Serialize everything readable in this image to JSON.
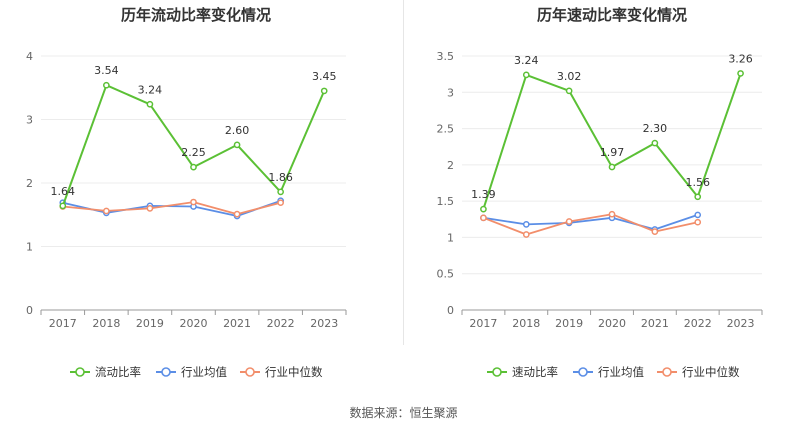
{
  "source": "数据来源：恒生聚源",
  "chart_data": [
    {
      "type": "line",
      "title": "历年流动比率变化情况",
      "categories": [
        "2017",
        "2018",
        "2019",
        "2020",
        "2021",
        "2022",
        "2023"
      ],
      "ylim": [
        0,
        4
      ],
      "yticks": [
        0,
        1,
        2,
        3,
        4
      ],
      "ytick_labels": [
        "0",
        "1",
        "2",
        "3",
        "4"
      ],
      "grid": true,
      "legend_position": "bottom",
      "series": [
        {
          "name": "流动比率",
          "color": "#5bc035",
          "values": [
            1.64,
            3.54,
            3.24,
            2.25,
            2.6,
            1.86,
            3.45
          ],
          "labels": [
            "1.64",
            "3.54",
            "3.24",
            "2.25",
            "2.60",
            "1.86",
            "3.45"
          ]
        },
        {
          "name": "行业均值",
          "color": "#5b8ee6",
          "values": [
            1.69,
            1.53,
            1.64,
            1.63,
            1.48,
            1.72,
            null
          ]
        },
        {
          "name": "行业中位数",
          "color": "#f28e6b",
          "values": [
            1.63,
            1.56,
            1.6,
            1.7,
            1.51,
            1.69,
            null
          ]
        }
      ]
    },
    {
      "type": "line",
      "title": "历年速动比率变化情况",
      "categories": [
        "2017",
        "2018",
        "2019",
        "2020",
        "2021",
        "2022",
        "2023"
      ],
      "ylim": [
        0,
        3.5
      ],
      "yticks": [
        0,
        0.5,
        1,
        1.5,
        2,
        2.5,
        3,
        3.5
      ],
      "ytick_labels": [
        "0",
        "0.5",
        "1",
        "1.5",
        "2",
        "2.5",
        "3",
        "3.5"
      ],
      "grid": true,
      "legend_position": "bottom",
      "series": [
        {
          "name": "速动比率",
          "color": "#5bc035",
          "values": [
            1.39,
            3.24,
            3.02,
            1.97,
            2.3,
            1.56,
            3.26
          ],
          "labels": [
            "1.39",
            "3.24",
            "3.02",
            "1.97",
            "2.30",
            "1.56",
            "3.26"
          ]
        },
        {
          "name": "行业均值",
          "color": "#5b8ee6",
          "values": [
            1.27,
            1.18,
            1.2,
            1.27,
            1.11,
            1.31,
            null
          ]
        },
        {
          "name": "行业中位数",
          "color": "#f28e6b",
          "values": [
            1.27,
            1.04,
            1.22,
            1.32,
            1.08,
            1.21,
            null
          ]
        }
      ]
    }
  ]
}
